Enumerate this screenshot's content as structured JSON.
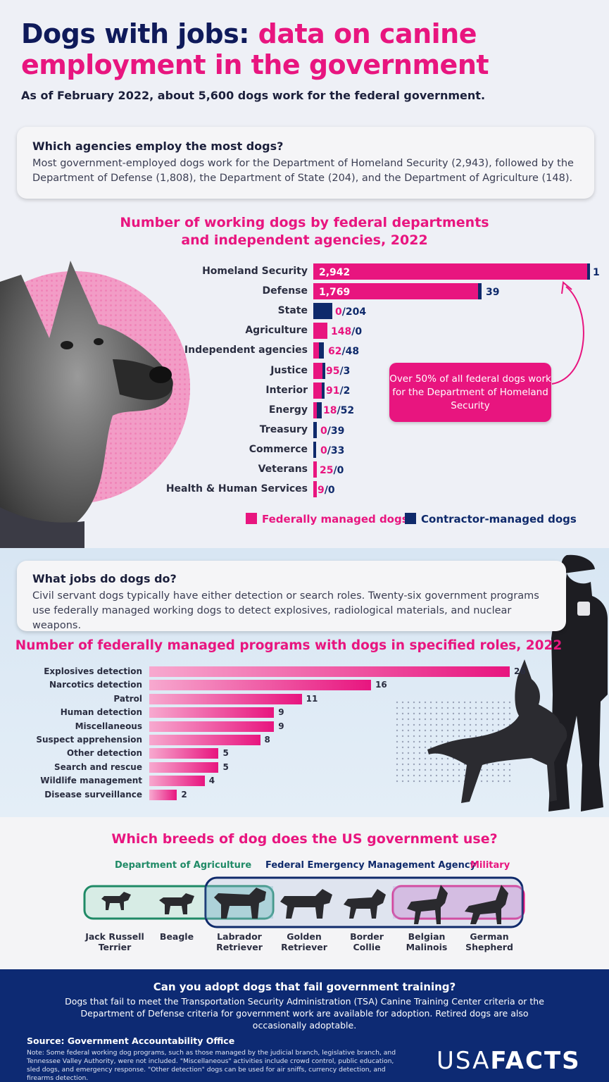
{
  "header": {
    "title_part1": "Dogs with jobs: ",
    "title_part2": "data on canine employment in the government",
    "subtitle": "As of February 2022, about 5,600 dogs work for the federal government."
  },
  "agencies_card": {
    "heading": "Which agencies employ the most dogs?",
    "body": "Most government-employed dogs work for the Department of Homeland Security (2,943), followed by the Department of Defense (1,808), the Department of State (204), and the Department of Agriculture (148)."
  },
  "jobs_card": {
    "heading": "What jobs do dogs do?",
    "body": "Civil servant dogs typically have either detection or search roles. Twenty-six government programs use federally managed working dogs to detect explosives, radiological materials, and nuclear weapons."
  },
  "callout": "Over 50% of all federal dogs work for the Department of Homeland Security",
  "colors": {
    "pink": "#e8157f",
    "navy": "#0f2a6b",
    "footer": "#0d2a73"
  },
  "chart_data": [
    {
      "type": "bar",
      "orientation": "horizontal",
      "stacked": true,
      "title": "Number of working dogs by federal departments and independent agencies, 2022",
      "categories": [
        "Homeland Security",
        "Defense",
        "State",
        "Agriculture",
        "Independent agencies",
        "Justice",
        "Interior",
        "Energy",
        "Treasury",
        "Commerce",
        "Veterans",
        "Health & Human Services"
      ],
      "series": [
        {
          "name": "Federally managed dogs",
          "color": "#e8157f",
          "values": [
            2942,
            1769,
            0,
            148,
            62,
            95,
            91,
            18,
            0,
            0,
            25,
            9
          ]
        },
        {
          "name": "Contractor-managed dogs",
          "color": "#0f2a6b",
          "values": [
            1,
            39,
            204,
            0,
            48,
            3,
            2,
            52,
            39,
            33,
            0,
            0
          ]
        }
      ],
      "value_labels": [
        "2,942",
        "1",
        "1,769",
        "39",
        "0/204",
        "148/0",
        "62/48",
        "95/3",
        "91/2",
        "18/52",
        "0/39",
        "0/33",
        "25/0",
        "9/0"
      ],
      "legend": "bottom"
    },
    {
      "type": "bar",
      "orientation": "horizontal",
      "title": "Number of federally managed programs with dogs in specified roles, 2022",
      "categories": [
        "Explosives detection",
        "Narcotics detection",
        "Patrol",
        "Human detection",
        "Miscellaneous",
        "Suspect apprehension",
        "Other detection",
        "Search and rescue",
        "Wildlife management",
        "Disease surveillance"
      ],
      "values": [
        26,
        16,
        11,
        9,
        9,
        8,
        5,
        5,
        4,
        2
      ]
    }
  ],
  "breeds": {
    "title": "Which breeds of dog does the US government use?",
    "groups": [
      "Department of Agriculture",
      "Federal Emergency Management Agency",
      "Military"
    ],
    "list": [
      {
        "line1": "Jack Russell",
        "line2": "Terrier"
      },
      {
        "line1": "Beagle",
        "line2": ""
      },
      {
        "line1": "Labrador",
        "line2": "Retriever"
      },
      {
        "line1": "Golden",
        "line2": "Retriever"
      },
      {
        "line1": "Border",
        "line2": "Collie"
      },
      {
        "line1": "Belgian",
        "line2": "Malinois"
      },
      {
        "line1": "German",
        "line2": "Shepherd"
      }
    ]
  },
  "footer": {
    "title": "Can you adopt dogs that fail government training?",
    "text": "Dogs that fail to meet the Transportation Security Administration (TSA) Canine Training Center criteria or the Department of Defense criteria for government work are available for adoption. Retired dogs are also occasionally adoptable.",
    "source": "Source: Government Accountability Office",
    "note": "Note: Some federal working dog programs, such as those managed by the judicial branch, legislative branch, and Tennessee Valley Authority, were not included. \"Miscellaneous\" activities include crowd control, public education, sled dogs, and emergency response. \"Other detection\" dogs can be used for air sniffs, currency detection, and firearms detection.",
    "logo_a": "USA",
    "logo_b": "FACTS"
  }
}
